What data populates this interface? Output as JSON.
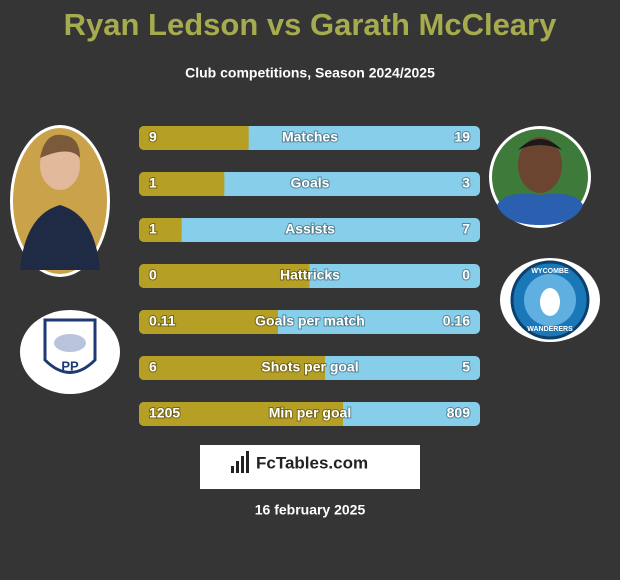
{
  "header": {
    "title": "Ryan Ledson vs Garath McCleary",
    "subtitle": "Club competitions, Season 2024/2025"
  },
  "rows": [
    {
      "label": "Matches",
      "left": 9,
      "right": 19
    },
    {
      "label": "Goals",
      "left": 1,
      "right": 3
    },
    {
      "label": "Assists",
      "left": 1,
      "right": 7
    },
    {
      "label": "Hattricks",
      "left": 0,
      "right": 0
    },
    {
      "label": "Goals per match",
      "left": 0.11,
      "right": 0.16
    },
    {
      "label": "Shots per goal",
      "left": 6,
      "right": 5
    },
    {
      "label": "Min per goal",
      "left": 1205,
      "right": 809
    }
  ],
  "colors": {
    "left": "#b59f25",
    "right": "#87ceea"
  },
  "logos": {
    "left_club": "PP",
    "right_club_top": "WYCOMBE",
    "right_club_bottom": "WANDERERS"
  },
  "brand": "FcTables.com",
  "date": "16 february 2025"
}
